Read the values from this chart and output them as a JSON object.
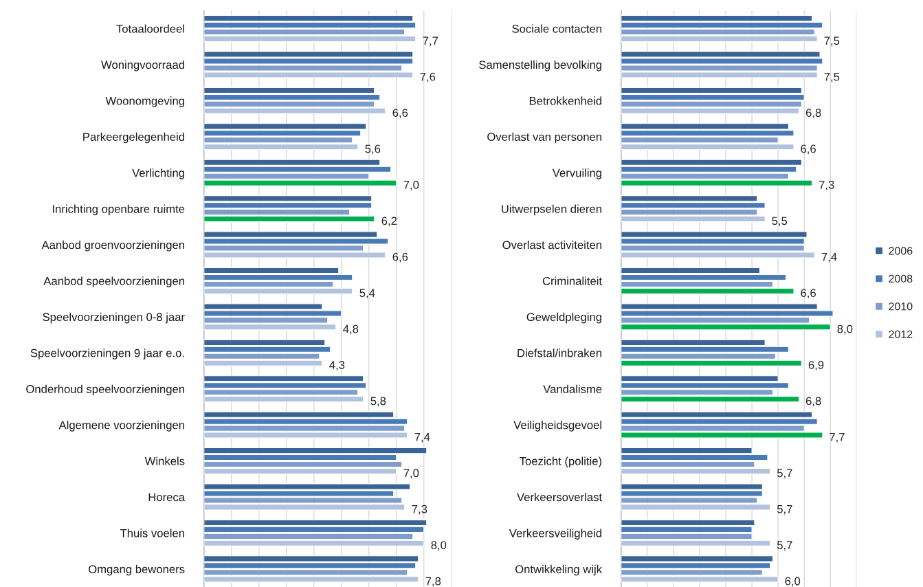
{
  "chart_data": [
    {
      "type": "bar",
      "orientation": "horizontal",
      "categories": [
        "Totaaloordeel",
        "Woningvoorraad",
        "Woonomgeving",
        "Parkeergelegenheid",
        "Verlichting",
        "Inrichting openbare ruimte",
        "Aanbod groenvoorzieningen",
        "Aanbod speelvoorzieningen",
        "Speelvoorzieningen 0-8 jaar",
        "Speelvoorzieningen 9 jaar e.o.",
        "Onderhoud speelvoorzieningen",
        "Algemene voorzieningen",
        "Winkels",
        "Horeca",
        "Thuis voelen",
        "Omgang bewoners"
      ],
      "xlim": [
        0,
        9
      ],
      "xticks": [
        {
          "value": 0,
          "label": null
        },
        {
          "value": 1,
          "label": null
        },
        {
          "value": 2,
          "label": null
        },
        {
          "value": 3,
          "label": null
        },
        {
          "value": 4,
          "label": null
        },
        {
          "value": 5,
          "label": null
        },
        {
          "value": 6,
          "label": null
        },
        {
          "value": 7,
          "label": null
        },
        {
          "value": 8,
          "label": null
        },
        {
          "value": 9,
          "label": null
        }
      ],
      "tick_labels": "y",
      "grid": "x",
      "legend": "right",
      "series": [
        {
          "name": "2006",
          "color": "#3b6396",
          "values": [
            7.6,
            7.6,
            6.2,
            5.9,
            6.4,
            6.1,
            6.3,
            4.9,
            4.3,
            4.4,
            5.8,
            6.9,
            8.1,
            7.5,
            8.1,
            7.8
          ]
        },
        {
          "name": "2008",
          "color": "#4a7ab5",
          "values": [
            7.7,
            7.6,
            6.4,
            5.7,
            6.8,
            6.1,
            6.7,
            5.4,
            5.0,
            4.6,
            5.9,
            7.4,
            7.0,
            6.9,
            8.0,
            7.7
          ]
        },
        {
          "name": "2010",
          "color": "#7f9dca",
          "values": [
            7.3,
            7.2,
            6.2,
            5.4,
            6.0,
            5.3,
            5.8,
            4.7,
            4.5,
            4.2,
            5.6,
            7.3,
            7.2,
            7.2,
            7.6,
            7.4
          ]
        },
        {
          "name": "2012",
          "color": "#b3c3df",
          "colors": [
            "#b3c3df",
            "#b3c3df",
            "#b3c3df",
            "#b3c3df",
            "#00b050",
            "#00b050",
            "#b3c3df",
            "#b3c3df",
            "#b3c3df",
            "#b3c3df",
            "#b3c3df",
            "#b3c3df",
            "#b3c3df",
            "#b3c3df",
            "#b3c3df",
            "#b3c3df"
          ],
          "values": [
            7.7,
            7.6,
            6.6,
            5.6,
            7.0,
            6.2,
            6.6,
            5.4,
            4.8,
            4.3,
            5.8,
            7.4,
            7.0,
            7.3,
            8.0,
            7.8
          ],
          "value_labels": [
            "7,7",
            "7,6",
            "6,6",
            "5,6",
            "7,0",
            "6,2",
            "6,6",
            "5,4",
            "4,8",
            "4,3",
            "5,8",
            "7,4",
            "7,0",
            "7,3",
            "8,0",
            "7,8"
          ]
        }
      ]
    },
    {
      "type": "bar",
      "orientation": "horizontal",
      "categories": [
        "Sociale contacten",
        "Samenstelling bevolking",
        "Betrokkenheid",
        "Overlast van personen",
        "Vervuiling",
        "Uitwerpselen dieren",
        "Overlast activiteiten",
        "Criminaliteit",
        "Geweldpleging",
        "Diefstal/inbraken",
        "Vandalisme",
        "Veiligheidsgevoel",
        "Toezicht (politie)",
        "Verkeersoverlast",
        "Verkeersveiligheid",
        "Ontwikkeling wijk"
      ],
      "xlim": [
        0,
        9
      ],
      "xticks": [
        {
          "value": 0,
          "label": null
        },
        {
          "value": 1,
          "label": null
        },
        {
          "value": 2,
          "label": null
        },
        {
          "value": 3,
          "label": null
        },
        {
          "value": 4,
          "label": null
        },
        {
          "value": 5,
          "label": null
        },
        {
          "value": 6,
          "label": null
        },
        {
          "value": 7,
          "label": null
        },
        {
          "value": 8,
          "label": null
        },
        {
          "value": 9,
          "label": null
        }
      ],
      "tick_labels": "y",
      "grid": "x",
      "legend": "right",
      "series": [
        {
          "name": "2006",
          "color": "#3b6396",
          "values": [
            7.3,
            7.6,
            6.9,
            6.4,
            6.9,
            5.2,
            7.1,
            5.3,
            7.5,
            5.5,
            6.0,
            7.3,
            5.0,
            5.4,
            5.1,
            5.8
          ]
        },
        {
          "name": "2008",
          "color": "#4a7ab5",
          "values": [
            7.7,
            7.7,
            7.0,
            6.6,
            6.7,
            5.5,
            7.0,
            6.3,
            8.1,
            6.4,
            6.4,
            7.5,
            5.6,
            5.4,
            5.0,
            5.7
          ]
        },
        {
          "name": "2010",
          "color": "#7f9dca",
          "values": [
            7.4,
            7.5,
            6.9,
            6.0,
            6.4,
            5.2,
            7.0,
            5.8,
            7.2,
            5.9,
            5.8,
            7.0,
            5.1,
            5.2,
            5.0,
            5.4
          ]
        },
        {
          "name": "2012",
          "color": "#b3c3df",
          "colors": [
            "#b3c3df",
            "#b3c3df",
            "#b3c3df",
            "#b3c3df",
            "#00b050",
            "#b3c3df",
            "#b3c3df",
            "#00b050",
            "#00b050",
            "#00b050",
            "#00b050",
            "#00b050",
            "#b3c3df",
            "#b3c3df",
            "#b3c3df",
            "#b3c3df"
          ],
          "values": [
            7.5,
            7.5,
            6.8,
            6.6,
            7.3,
            5.5,
            7.4,
            6.6,
            8.0,
            6.9,
            6.8,
            7.7,
            5.7,
            5.7,
            5.7,
            6.0
          ],
          "value_labels": [
            "7,5",
            "7,5",
            "6,8",
            "6,6",
            "7,3",
            "5,5",
            "7,4",
            "6,6",
            "8,0",
            "6,9",
            "6,8",
            "7,7",
            "5,7",
            "5,7",
            "5,7",
            "6,0"
          ]
        }
      ]
    }
  ]
}
